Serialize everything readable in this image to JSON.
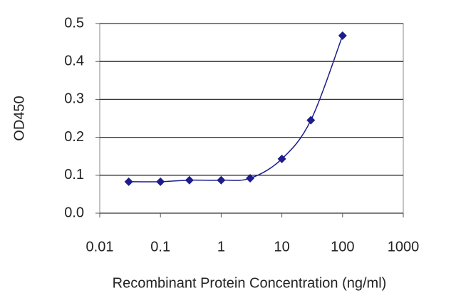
{
  "chart_data": {
    "type": "line",
    "smooth": true,
    "marker": "diamond",
    "x_label": "Recombinant Protein Concentration (ng/ml)",
    "y_label": "OD450",
    "x": [
      0.03,
      0.1,
      0.3,
      1,
      3,
      10,
      30,
      100
    ],
    "series": [
      {
        "color": "#1c1c8c",
        "values": [
          0.083,
          0.083,
          0.087,
          0.087,
          0.092,
          0.143,
          0.245,
          0.468
        ]
      }
    ],
    "xscale": "log",
    "xlim": [
      0.01,
      1000
    ],
    "xticks": [
      0.01,
      0.1,
      1,
      10,
      100,
      1000
    ],
    "ylim": [
      0,
      0.5
    ],
    "yticks": [
      {
        "value": 0,
        "label": "0.0"
      },
      0.1,
      0.2,
      0.3,
      0.4,
      0.5
    ],
    "grid": true
  }
}
